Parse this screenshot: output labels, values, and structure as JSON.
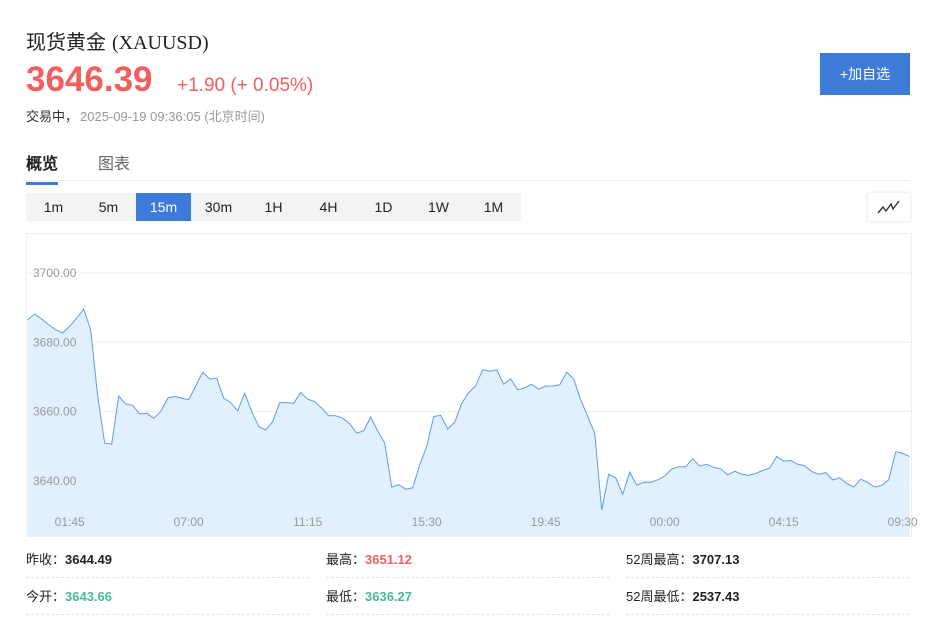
{
  "header": {
    "name": "现货黄金",
    "symbol": "(XAUUSD)",
    "price": "3646.39",
    "change": "+1.90 (+ 0.05%)",
    "status": "交易中，",
    "timestamp": "2025-09-19 09:36:05 (北京时间)",
    "add_button": "+加自选"
  },
  "tabs": [
    {
      "label": "概览",
      "active": true
    },
    {
      "label": "图表",
      "active": false
    }
  ],
  "periods": [
    {
      "label": "1m"
    },
    {
      "label": "5m"
    },
    {
      "label": "15m",
      "active": true
    },
    {
      "label": "30m"
    },
    {
      "label": "1H"
    },
    {
      "label": "4H"
    },
    {
      "label": "1D"
    },
    {
      "label": "1W"
    },
    {
      "label": "1M"
    }
  ],
  "chart_type_icon": "line-chart-icon",
  "colors": {
    "up": "#f25f5c",
    "down": "#4bb991",
    "accent": "#3e7bd9",
    "line": "#5b9cf0",
    "fill": "#e2effd"
  },
  "chart_data": {
    "type": "area",
    "interval": "15m",
    "y_ticks": [
      "3700.00",
      "3680.00",
      "3660.00",
      "3640.00"
    ],
    "y_tick_values": [
      3700,
      3680,
      3660,
      3640
    ],
    "x_ticks": [
      "01:45",
      "07:00",
      "11:15",
      "15:30",
      "19:45",
      "00:00",
      "04:15",
      "09:30"
    ],
    "grid": true,
    "values": [
      3686.5,
      3688.2,
      3686.7,
      3685.1,
      3683.6,
      3682.7,
      3684.6,
      3687.0,
      3689.6,
      3683.6,
      3664.4,
      3650.9,
      3650.6,
      3664.5,
      3662.2,
      3661.8,
      3659.3,
      3659.5,
      3658.1,
      3660.0,
      3663.9,
      3664.4,
      3663.9,
      3663.4,
      3667.4,
      3671.4,
      3669.4,
      3669.6,
      3663.9,
      3662.6,
      3660.2,
      3665.3,
      3660.0,
      3655.7,
      3654.7,
      3657.1,
      3662.6,
      3662.6,
      3662.4,
      3665.5,
      3663.6,
      3662.9,
      3661.0,
      3658.8,
      3658.8,
      3658.1,
      3656.5,
      3653.8,
      3654.5,
      3658.4,
      3654.4,
      3650.9,
      3638.2,
      3638.9,
      3637.6,
      3638.0,
      3644.6,
      3649.9,
      3658.6,
      3658.9,
      3655.0,
      3656.9,
      3662.4,
      3665.5,
      3667.4,
      3672.1,
      3671.6,
      3672.1,
      3667.9,
      3669.4,
      3666.3,
      3666.8,
      3667.9,
      3666.5,
      3667.4,
      3667.4,
      3667.7,
      3671.4,
      3669.4,
      3663.4,
      3658.6,
      3653.8,
      3631.6,
      3641.9,
      3640.9,
      3636.1,
      3642.5,
      3638.8,
      3639.6,
      3639.6,
      3640.3,
      3641.4,
      3643.4,
      3644.1,
      3644.1,
      3646.4,
      3644.3,
      3644.8,
      3643.9,
      3643.5,
      3641.7,
      3642.8,
      3641.9,
      3641.6,
      3642.2,
      3643.0,
      3643.7,
      3647.0,
      3645.7,
      3645.9,
      3644.8,
      3644.4,
      3642.7,
      3641.9,
      3642.4,
      3640.3,
      3640.9,
      3639.3,
      3638.2,
      3640.5,
      3639.6,
      3638.2,
      3638.7,
      3640.3,
      3648.4,
      3648.0,
      3647.0
    ]
  },
  "stats": [
    {
      "label": "昨收：",
      "value": "3644.49",
      "color": "#222"
    },
    {
      "label": "最高：",
      "value": "3651.12",
      "color": "#f25f5c"
    },
    {
      "label": "52周最高：",
      "value": "3707.13",
      "color": "#222"
    },
    {
      "label": "今开：",
      "value": "3643.66",
      "color": "#4bb991"
    },
    {
      "label": "最低：",
      "value": "3636.27",
      "color": "#4bb991"
    },
    {
      "label": "52周最低：",
      "value": "2537.43",
      "color": "#222"
    }
  ]
}
